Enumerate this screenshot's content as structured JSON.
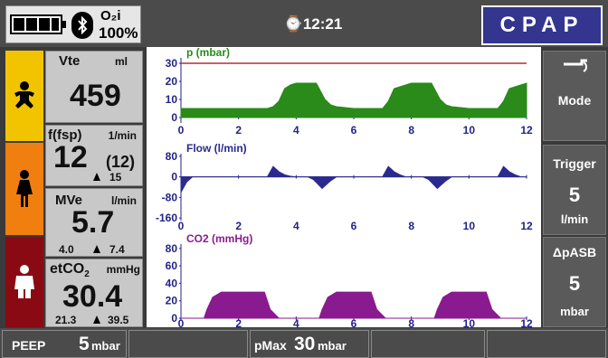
{
  "header": {
    "o2_label": "O₂i",
    "o2_value": "100%",
    "time": "⌚12:21",
    "mode": "CPAP"
  },
  "patients": [
    "infant-icon",
    "child-icon",
    "adult-icon"
  ],
  "colors": {
    "infant": "#f2c400",
    "child": "#f07f10",
    "adult": "#8a0a14",
    "pressure": "#2a8a1a",
    "flow": "#2a2a8f",
    "co2": "#8a1a8f",
    "axis": "#222288",
    "limit": "#b03030"
  },
  "vitals": {
    "vte": {
      "label": "Vte",
      "unit": "ml",
      "value": "459"
    },
    "freq": {
      "label": "f(fsp)",
      "unit": "1/min",
      "value": "12",
      "sub": "(12)",
      "alarm": "15"
    },
    "mve": {
      "label": "MVe",
      "unit": "l/min",
      "value": "5.7",
      "low": "4.0",
      "high": "7.4"
    },
    "etco2": {
      "label": "etCO",
      "label_sub": "2",
      "unit": "mmHg",
      "value": "30.4",
      "low": "21.3",
      "high": "39.5"
    }
  },
  "right_buttons": {
    "mode": {
      "label": "Mode"
    },
    "trigger": {
      "label": "Trigger",
      "value": "5",
      "unit": "l/min"
    },
    "dpasb": {
      "label": "ΔpASB",
      "value": "5",
      "unit": "mbar"
    }
  },
  "bottom": {
    "peep_label": "PEEP",
    "peep_value": "5",
    "peep_unit": "mbar",
    "pmax_label": "pMax",
    "pmax_value": "30",
    "pmax_unit": "mbar"
  },
  "chart_data": [
    {
      "type": "line",
      "title": "p (mbar)",
      "x_ticks": [
        "0",
        "2",
        "4",
        "6",
        "8",
        "10",
        "12"
      ],
      "y_ticks": [
        "30",
        "20",
        "10",
        "0"
      ],
      "xlim": [
        0,
        12
      ],
      "ylim": [
        -3,
        33
      ],
      "limit_line": 30,
      "x": [
        0,
        2.8,
        2.9,
        3.0,
        3.2,
        3.4,
        3.6,
        3.8,
        4.0,
        4.2,
        4.4,
        4.7,
        5.0,
        5.2,
        5.4,
        6.0,
        7.0,
        7.2,
        7.4,
        7.8,
        8.0,
        8.4,
        8.7,
        9.0,
        9.2,
        9.4,
        10.0,
        11.0,
        11.2,
        11.4,
        11.8,
        12.0
      ],
      "y": [
        5,
        5,
        5,
        5,
        6,
        9,
        16,
        18,
        19,
        19,
        19,
        19,
        10,
        7,
        6,
        5,
        5,
        9,
        16,
        18,
        19,
        19,
        19,
        10,
        7,
        6,
        5,
        5,
        9,
        16,
        18,
        19
      ]
    },
    {
      "type": "line",
      "title": "Flow (l/min)",
      "x_ticks": [
        "0",
        "2",
        "4",
        "6",
        "8",
        "10",
        "12"
      ],
      "y_ticks": [
        "80",
        "0",
        "-80",
        "-160"
      ],
      "xlim": [
        0,
        12
      ],
      "ylim": [
        -170,
        90
      ],
      "x": [
        0,
        0.2,
        0.4,
        3.0,
        3.2,
        3.4,
        3.6,
        3.8,
        4.0,
        4.4,
        4.6,
        4.9,
        5.2,
        5.4,
        7.0,
        7.2,
        7.4,
        7.6,
        7.8,
        8.4,
        8.6,
        8.9,
        9.2,
        9.4,
        11.0,
        11.2,
        11.4,
        11.6,
        11.8,
        12.0
      ],
      "y": [
        -60,
        -20,
        0,
        0,
        40,
        20,
        8,
        2,
        0,
        0,
        -10,
        -45,
        -15,
        0,
        0,
        40,
        20,
        8,
        0,
        0,
        -10,
        -45,
        -15,
        0,
        0,
        40,
        20,
        8,
        0,
        0
      ]
    },
    {
      "type": "area",
      "title": "CO2 (mmHg)",
      "x_ticks": [
        "0",
        "2",
        "4",
        "6",
        "8",
        "10",
        "12"
      ],
      "y_ticks": [
        "80",
        "60",
        "40",
        "20",
        "0"
      ],
      "xlim": [
        0,
        12
      ],
      "ylim": [
        0,
        85
      ],
      "x": [
        0,
        0.8,
        0.9,
        1.1,
        1.4,
        2.9,
        3.1,
        3.4,
        4.8,
        4.9,
        5.1,
        5.4,
        6.6,
        6.8,
        7.1,
        8.8,
        8.9,
        9.1,
        9.4,
        10.6,
        10.8,
        11.1,
        12.0
      ],
      "y": [
        0,
        0,
        10,
        24,
        30,
        30,
        10,
        0,
        0,
        10,
        24,
        30,
        30,
        10,
        0,
        0,
        10,
        24,
        30,
        30,
        10,
        0,
        0
      ]
    }
  ]
}
